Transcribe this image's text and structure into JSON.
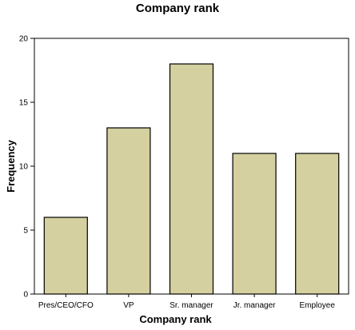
{
  "chart_data": {
    "type": "bar",
    "title": "Company rank",
    "xlabel": "Company rank",
    "ylabel": "Frequency",
    "categories": [
      "Pres/CEO/CFO",
      "VP",
      "Sr. manager",
      "Jr. manager",
      "Employee"
    ],
    "values": [
      6,
      13,
      18,
      11,
      11
    ],
    "ylim": [
      0,
      20
    ],
    "yticks": [
      "0",
      "5",
      "10",
      "15",
      "20"
    ],
    "bar_color": "#d4d0a0",
    "grid": false,
    "legend": "none"
  }
}
